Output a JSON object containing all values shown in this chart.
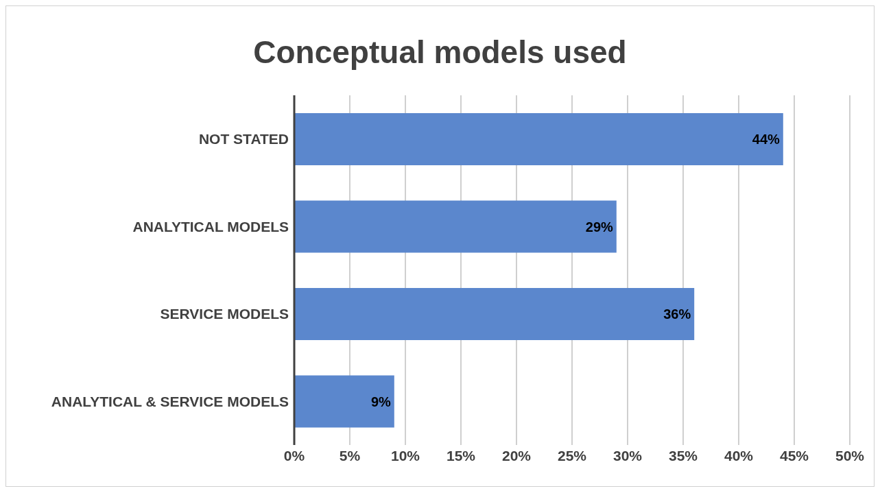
{
  "chart_data": {
    "type": "bar",
    "orientation": "horizontal",
    "title": "Conceptual models used",
    "categories": [
      "NOT STATED",
      "ANALYTICAL MODELS",
      "SERVICE MODELS",
      "ANALYTICAL & SERVICE MODELS"
    ],
    "values": [
      44,
      29,
      36,
      9
    ],
    "value_labels": [
      "44%",
      "29%",
      "36%",
      "9%"
    ],
    "color": "#5b87cd",
    "xlim": [
      0,
      50
    ],
    "xticks": [
      {
        "value": 0,
        "label": "0%"
      },
      {
        "value": 5,
        "label": "5%"
      },
      {
        "value": 10,
        "label": "10%"
      },
      {
        "value": 15,
        "label": "15%"
      },
      {
        "value": 20,
        "label": "20%"
      },
      {
        "value": 25,
        "label": "25%"
      },
      {
        "value": 30,
        "label": "30%"
      },
      {
        "value": 35,
        "label": "35%"
      },
      {
        "value": 40,
        "label": "40%"
      },
      {
        "value": 45,
        "label": "45%"
      },
      {
        "value": 50,
        "label": "50%"
      }
    ],
    "grid": "x"
  }
}
